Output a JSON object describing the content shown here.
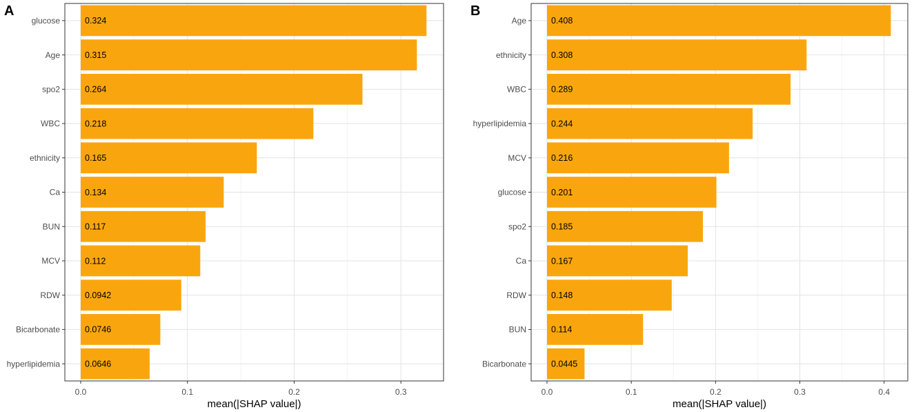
{
  "chart_data": [
    {
      "type": "bar",
      "orientation": "horizontal",
      "panel_label": "A",
      "categories": [
        "glucose",
        "Age",
        "spo2",
        "WBC",
        "ethnicity",
        "Ca",
        "BUN",
        "MCV",
        "RDW",
        "Bicarbonate",
        "hyperlipidemia"
      ],
      "values": [
        0.324,
        0.315,
        0.264,
        0.218,
        0.165,
        0.134,
        0.117,
        0.112,
        0.0942,
        0.0746,
        0.0646
      ],
      "value_labels": [
        "0.324",
        "0.315",
        "0.264",
        "0.218",
        "0.165",
        "0.134",
        "0.117",
        "0.112",
        "0.0942",
        "0.0746",
        "0.0646"
      ],
      "xlabel": "mean(|SHAP value|)",
      "ylabel": "",
      "xlim": [
        0,
        0.324
      ],
      "xticks": [
        0,
        0.1,
        0.2,
        0.3
      ],
      "xtick_labels": [
        "0.0",
        "0.1",
        "0.2",
        "0.3"
      ],
      "bar_color": "#F9A60E",
      "grid": true
    },
    {
      "type": "bar",
      "orientation": "horizontal",
      "panel_label": "B",
      "categories": [
        "Age",
        "ethnicity",
        "WBC",
        "hyperlipidemia",
        "MCV",
        "glucose",
        "spo2",
        "Ca",
        "RDW",
        "BUN",
        "Bicarbonate"
      ],
      "values": [
        0.408,
        0.308,
        0.289,
        0.244,
        0.216,
        0.201,
        0.185,
        0.167,
        0.148,
        0.114,
        0.0445
      ],
      "value_labels": [
        "0.408",
        "0.308",
        "0.289",
        "0.244",
        "0.216",
        "0.201",
        "0.185",
        "0.167",
        "0.148",
        "0.114",
        "0.0445"
      ],
      "xlabel": "mean(|SHAP value|)",
      "ylabel": "",
      "xlim": [
        0,
        0.408
      ],
      "xticks": [
        0,
        0.1,
        0.2,
        0.3,
        0.4
      ],
      "xtick_labels": [
        "0.0",
        "0.1",
        "0.2",
        "0.3",
        "0.4"
      ],
      "bar_color": "#F9A60E",
      "grid": true
    }
  ]
}
